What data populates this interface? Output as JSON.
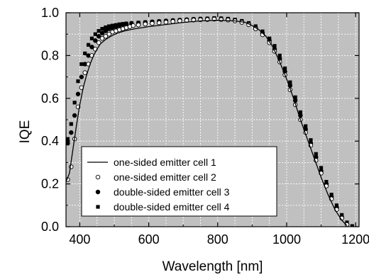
{
  "chart_data": {
    "type": "scatter",
    "title": "",
    "xlabel": "Wavelength [nm]",
    "ylabel": "IQE",
    "xlim": [
      360,
      1210
    ],
    "ylim": [
      0.0,
      1.0
    ],
    "x_ticks": [
      400,
      600,
      800,
      1000,
      1200
    ],
    "x_tick_labels": [
      "400",
      "600",
      "800",
      "1000",
      "1200"
    ],
    "y_ticks": [
      0.0,
      0.2,
      0.4,
      0.6,
      0.8,
      1.0
    ],
    "y_tick_labels": [
      "0.0",
      "0.2",
      "0.4",
      "0.6",
      "0.8",
      "1.0"
    ],
    "grid": true,
    "plot_background": "#c0c0c0",
    "grid_color": "#ffffff",
    "legend_position": "lower-left",
    "series": [
      {
        "name": "one-sided emitter cell 1",
        "marker": "line",
        "color": "#000000",
        "points": [
          [
            360,
            0.21
          ],
          [
            370,
            0.25
          ],
          [
            380,
            0.36
          ],
          [
            390,
            0.47
          ],
          [
            400,
            0.57
          ],
          [
            410,
            0.65
          ],
          [
            420,
            0.71
          ],
          [
            430,
            0.76
          ],
          [
            440,
            0.8
          ],
          [
            450,
            0.83
          ],
          [
            460,
            0.855
          ],
          [
            475,
            0.875
          ],
          [
            490,
            0.89
          ],
          [
            510,
            0.905
          ],
          [
            530,
            0.915
          ],
          [
            560,
            0.925
          ],
          [
            600,
            0.935
          ],
          [
            650,
            0.945
          ],
          [
            700,
            0.955
          ],
          [
            750,
            0.962
          ],
          [
            800,
            0.965
          ],
          [
            850,
            0.962
          ],
          [
            880,
            0.955
          ],
          [
            900,
            0.94
          ],
          [
            920,
            0.92
          ],
          [
            940,
            0.89
          ],
          [
            960,
            0.84
          ],
          [
            980,
            0.77
          ],
          [
            1000,
            0.69
          ],
          [
            1020,
            0.6
          ],
          [
            1040,
            0.5
          ],
          [
            1060,
            0.41
          ],
          [
            1080,
            0.32
          ],
          [
            1100,
            0.23
          ],
          [
            1120,
            0.15
          ],
          [
            1140,
            0.08
          ],
          [
            1160,
            0.03
          ],
          [
            1175,
            0.005
          ]
        ]
      },
      {
        "name": "one-sided emitter cell 2",
        "marker": "open-circle",
        "color": "#000000",
        "points": [
          [
            365,
            0.22
          ],
          [
            375,
            0.28
          ],
          [
            385,
            0.41
          ],
          [
            395,
            0.56
          ],
          [
            405,
            0.65
          ],
          [
            415,
            0.72
          ],
          [
            425,
            0.76
          ],
          [
            435,
            0.8
          ],
          [
            445,
            0.83
          ],
          [
            455,
            0.86
          ],
          [
            465,
            0.88
          ],
          [
            475,
            0.89
          ],
          [
            485,
            0.9
          ],
          [
            495,
            0.91
          ],
          [
            505,
            0.915
          ],
          [
            515,
            0.92
          ],
          [
            525,
            0.925
          ],
          [
            535,
            0.93
          ],
          [
            545,
            0.935
          ],
          [
            555,
            0.94
          ],
          [
            570,
            0.943
          ],
          [
            590,
            0.947
          ],
          [
            610,
            0.95
          ],
          [
            630,
            0.953
          ],
          [
            650,
            0.956
          ],
          [
            670,
            0.959
          ],
          [
            690,
            0.962
          ],
          [
            710,
            0.964
          ],
          [
            730,
            0.966
          ],
          [
            750,
            0.967
          ],
          [
            770,
            0.968
          ],
          [
            790,
            0.97
          ],
          [
            810,
            0.968
          ],
          [
            830,
            0.966
          ],
          [
            850,
            0.962
          ],
          [
            870,
            0.955
          ],
          [
            890,
            0.944
          ],
          [
            910,
            0.925
          ],
          [
            930,
            0.897
          ],
          [
            950,
            0.86
          ],
          [
            965,
            0.82
          ],
          [
            980,
            0.77
          ],
          [
            995,
            0.71
          ],
          [
            1010,
            0.64
          ],
          [
            1025,
            0.57
          ],
          [
            1040,
            0.5
          ],
          [
            1055,
            0.44
          ],
          [
            1070,
            0.38
          ],
          [
            1085,
            0.31
          ],
          [
            1100,
            0.25
          ],
          [
            1115,
            0.19
          ],
          [
            1130,
            0.13
          ],
          [
            1145,
            0.08
          ],
          [
            1160,
            0.04
          ],
          [
            1175,
            0.01
          ]
        ]
      },
      {
        "name": "double-sided emitter cell 3",
        "marker": "filled-circle",
        "color": "#000000",
        "points": [
          [
            365,
            0.39
          ],
          [
            375,
            0.44
          ],
          [
            385,
            0.52
          ],
          [
            395,
            0.62
          ],
          [
            405,
            0.7
          ],
          [
            415,
            0.76
          ],
          [
            425,
            0.8
          ],
          [
            435,
            0.84
          ],
          [
            445,
            0.87
          ],
          [
            455,
            0.89
          ],
          [
            465,
            0.905
          ],
          [
            475,
            0.915
          ],
          [
            485,
            0.925
          ],
          [
            495,
            0.93
          ],
          [
            505,
            0.935
          ],
          [
            515,
            0.94
          ],
          [
            525,
            0.945
          ],
          [
            535,
            0.948
          ],
          [
            550,
            0.95
          ],
          [
            570,
            0.952
          ],
          [
            590,
            0.955
          ],
          [
            610,
            0.958
          ],
          [
            630,
            0.96
          ],
          [
            650,
            0.962
          ],
          [
            670,
            0.964
          ],
          [
            690,
            0.966
          ],
          [
            710,
            0.968
          ],
          [
            730,
            0.97
          ],
          [
            750,
            0.971
          ],
          [
            770,
            0.972
          ],
          [
            790,
            0.973
          ],
          [
            810,
            0.972
          ],
          [
            830,
            0.97
          ],
          [
            850,
            0.966
          ],
          [
            870,
            0.958
          ],
          [
            890,
            0.947
          ],
          [
            910,
            0.93
          ],
          [
            930,
            0.905
          ],
          [
            950,
            0.87
          ],
          [
            965,
            0.83
          ],
          [
            980,
            0.785
          ],
          [
            995,
            0.725
          ],
          [
            1010,
            0.66
          ],
          [
            1025,
            0.59
          ],
          [
            1040,
            0.52
          ],
          [
            1055,
            0.455
          ],
          [
            1070,
            0.39
          ],
          [
            1085,
            0.325
          ],
          [
            1100,
            0.26
          ],
          [
            1115,
            0.2
          ],
          [
            1130,
            0.14
          ],
          [
            1145,
            0.09
          ],
          [
            1160,
            0.045
          ],
          [
            1175,
            0.012
          ]
        ]
      },
      {
        "name": "double-sided emitter cell 4",
        "marker": "filled-square",
        "color": "#000000",
        "points": [
          [
            365,
            0.41
          ],
          [
            375,
            0.48
          ],
          [
            385,
            0.58
          ],
          [
            395,
            0.68
          ],
          [
            405,
            0.76
          ],
          [
            415,
            0.81
          ],
          [
            425,
            0.85
          ],
          [
            435,
            0.88
          ],
          [
            445,
            0.9
          ],
          [
            455,
            0.915
          ],
          [
            465,
            0.925
          ],
          [
            475,
            0.932
          ],
          [
            485,
            0.937
          ],
          [
            495,
            0.94
          ],
          [
            505,
            0.943
          ],
          [
            515,
            0.946
          ],
          [
            525,
            0.948
          ],
          [
            535,
            0.95
          ],
          [
            550,
            0.952
          ],
          [
            570,
            0.954
          ],
          [
            590,
            0.956
          ],
          [
            610,
            0.958
          ],
          [
            630,
            0.96
          ],
          [
            650,
            0.962
          ],
          [
            670,
            0.964
          ],
          [
            690,
            0.966
          ],
          [
            710,
            0.968
          ],
          [
            730,
            0.97
          ],
          [
            750,
            0.972
          ],
          [
            770,
            0.973
          ],
          [
            790,
            0.975
          ],
          [
            810,
            0.974
          ],
          [
            830,
            0.972
          ],
          [
            850,
            0.968
          ],
          [
            870,
            0.962
          ],
          [
            890,
            0.952
          ],
          [
            910,
            0.937
          ],
          [
            930,
            0.913
          ],
          [
            950,
            0.88
          ],
          [
            965,
            0.845
          ],
          [
            980,
            0.8
          ],
          [
            995,
            0.74
          ],
          [
            1010,
            0.675
          ],
          [
            1025,
            0.605
          ],
          [
            1040,
            0.535
          ],
          [
            1055,
            0.47
          ],
          [
            1070,
            0.405
          ],
          [
            1085,
            0.34
          ],
          [
            1100,
            0.275
          ],
          [
            1115,
            0.21
          ],
          [
            1130,
            0.15
          ],
          [
            1145,
            0.1
          ],
          [
            1160,
            0.055
          ],
          [
            1175,
            0.02
          ],
          [
            1190,
            0.003
          ]
        ]
      }
    ]
  }
}
